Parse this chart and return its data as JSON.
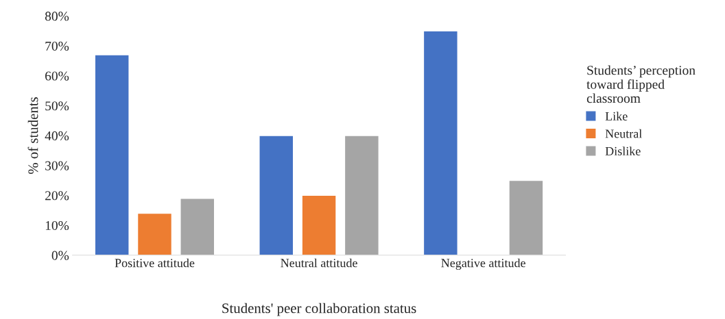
{
  "chart_data": {
    "type": "bar",
    "xlabel": "Students' peer collaboration status",
    "ylabel": "% of students",
    "legend_title": "Students’ perception\ntoward flipped\nclassroom",
    "categories": [
      "Positive attitude",
      "Neutral attitude",
      "Negative attitude"
    ],
    "series": [
      {
        "name": "Like",
        "color": "#4472c4",
        "values": [
          67,
          40,
          75
        ]
      },
      {
        "name": "Neutral",
        "color": "#ed7d31",
        "values": [
          14,
          20,
          null
        ]
      },
      {
        "name": "Dislike",
        "color": "#a5a5a5",
        "values": [
          19,
          40,
          25
        ]
      }
    ],
    "ylim": [
      0,
      80
    ],
    "yticks": [
      {
        "value": 0,
        "label": "0%"
      },
      {
        "value": 10,
        "label": "10%"
      },
      {
        "value": 20,
        "label": "20%"
      },
      {
        "value": 30,
        "label": "30%"
      },
      {
        "value": 40,
        "label": "40%"
      },
      {
        "value": 50,
        "label": "50%"
      },
      {
        "value": 60,
        "label": "60%"
      },
      {
        "value": 70,
        "label": "70%"
      },
      {
        "value": 80,
        "label": "80%"
      }
    ],
    "grid": false,
    "legend": "right"
  }
}
